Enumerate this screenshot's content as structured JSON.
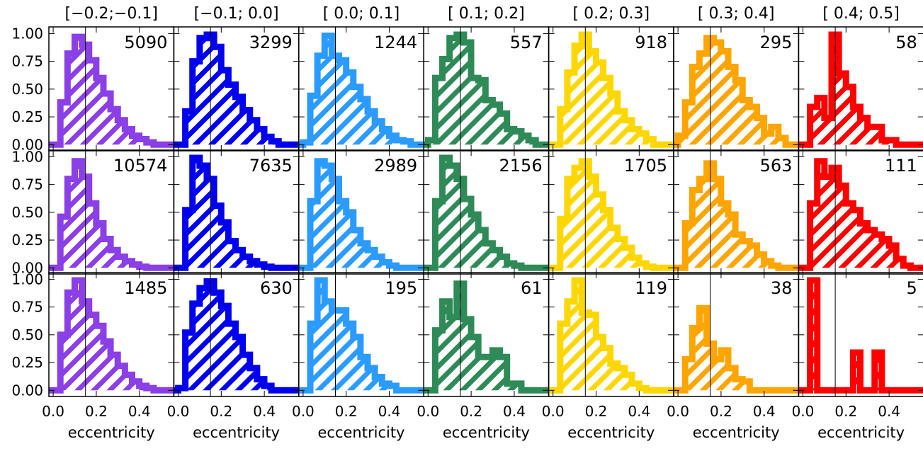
{
  "chart_data": {
    "type": "bar",
    "layout": "3 rows x 7 columns grid of step histograms (hatched fill)",
    "xlabel": "eccentricity",
    "ylabel": "",
    "xlim": [
      -0.02,
      0.56
    ],
    "ylim": [
      -0.03,
      1.06
    ],
    "x_ticks": [
      "0.0",
      "0.2",
      "0.4"
    ],
    "y_ticks": [
      "0.00",
      "0.25",
      "0.50",
      "0.75",
      "1.00"
    ],
    "reference_line_x": 0.15,
    "grid": false,
    "bin_width": 0.0333,
    "column_titles": [
      "[−0.2;−0.1]",
      "[−0.1; 0.0]",
      "[ 0.0; 0.1]",
      "[ 0.1; 0.2]",
      "[ 0.2; 0.3]",
      "[ 0.3; 0.4]",
      "[ 0.4; 0.5]"
    ],
    "column_colors": [
      "#8b3fe6",
      "#0000ee",
      "#2b9bff",
      "#2e8b57",
      "#ffd700",
      "#ffa500",
      "#ff0000"
    ],
    "panels": [
      {
        "row": 0,
        "col": 0,
        "count": "5090",
        "values": [
          0.0,
          0.38,
          0.82,
          0.97,
          0.9,
          0.76,
          0.6,
          0.46,
          0.32,
          0.22,
          0.14,
          0.08,
          0.05,
          0.02,
          0.0,
          0.0
        ]
      },
      {
        "row": 0,
        "col": 1,
        "count": "3299",
        "values": [
          0.0,
          0.3,
          0.75,
          0.96,
          0.99,
          0.88,
          0.67,
          0.54,
          0.43,
          0.31,
          0.22,
          0.14,
          0.07,
          0.03,
          0.0,
          0.0
        ]
      },
      {
        "row": 0,
        "col": 2,
        "count": "1244",
        "values": [
          0.02,
          0.44,
          0.8,
          0.98,
          0.8,
          0.76,
          0.65,
          0.52,
          0.41,
          0.3,
          0.21,
          0.14,
          0.08,
          0.04,
          0.03,
          0.0
        ]
      },
      {
        "row": 0,
        "col": 3,
        "count": "557",
        "values": [
          0.04,
          0.6,
          0.77,
          0.96,
          0.99,
          0.92,
          0.6,
          0.58,
          0.4,
          0.36,
          0.28,
          0.14,
          0.12,
          0.08,
          0.04,
          0.0
        ]
      },
      {
        "row": 0,
        "col": 4,
        "count": "918",
        "values": [
          0.0,
          0.32,
          0.65,
          0.89,
          0.99,
          0.84,
          0.74,
          0.6,
          0.46,
          0.3,
          0.22,
          0.14,
          0.1,
          0.05,
          0.0,
          0.0
        ]
      },
      {
        "row": 0,
        "col": 5,
        "count": "295",
        "values": [
          0.08,
          0.38,
          0.7,
          0.82,
          0.96,
          0.92,
          0.84,
          0.7,
          0.58,
          0.4,
          0.34,
          0.24,
          0.1,
          0.16,
          0.06,
          0.0
        ]
      },
      {
        "row": 0,
        "col": 6,
        "count": "58",
        "values": [
          0.0,
          0.34,
          0.42,
          0.24,
          0.99,
          0.64,
          0.52,
          0.34,
          0.24,
          0.16,
          0.16,
          0.04,
          0.04,
          0.0,
          0.0,
          0.0
        ]
      },
      {
        "row": 1,
        "col": 0,
        "count": "10574",
        "values": [
          0.0,
          0.46,
          0.8,
          0.96,
          0.82,
          0.58,
          0.4,
          0.26,
          0.16,
          0.1,
          0.06,
          0.03,
          0.01,
          0.0,
          0.0,
          0.0
        ]
      },
      {
        "row": 1,
        "col": 1,
        "count": "7635",
        "values": [
          0.0,
          0.52,
          0.99,
          0.92,
          0.8,
          0.56,
          0.41,
          0.24,
          0.16,
          0.1,
          0.06,
          0.03,
          0.01,
          0.0,
          0.0,
          0.0
        ]
      },
      {
        "row": 1,
        "col": 2,
        "count": "2989",
        "values": [
          0.0,
          0.6,
          0.96,
          0.92,
          0.8,
          0.6,
          0.5,
          0.34,
          0.22,
          0.16,
          0.1,
          0.05,
          0.02,
          0.0,
          0.0,
          0.0
        ]
      },
      {
        "row": 1,
        "col": 3,
        "count": "2156",
        "values": [
          0.0,
          0.6,
          0.99,
          0.92,
          0.8,
          0.62,
          0.48,
          0.34,
          0.22,
          0.16,
          0.1,
          0.04,
          0.02,
          0.0,
          0.0,
          0.0
        ]
      },
      {
        "row": 1,
        "col": 4,
        "count": "1705",
        "values": [
          0.0,
          0.44,
          0.8,
          0.9,
          0.96,
          0.82,
          0.66,
          0.52,
          0.36,
          0.26,
          0.18,
          0.09,
          0.04,
          0.01,
          0.0,
          0.0
        ]
      },
      {
        "row": 1,
        "col": 5,
        "count": "563",
        "values": [
          0.0,
          0.4,
          0.7,
          0.8,
          0.94,
          0.8,
          0.58,
          0.48,
          0.3,
          0.24,
          0.2,
          0.12,
          0.06,
          0.02,
          0.0,
          0.0
        ]
      },
      {
        "row": 1,
        "col": 6,
        "count": "111",
        "values": [
          0.0,
          0.58,
          0.96,
          0.82,
          0.9,
          0.74,
          0.58,
          0.52,
          0.4,
          0.34,
          0.3,
          0.26,
          0.2,
          0.08,
          0.02,
          0.0
        ]
      },
      {
        "row": 2,
        "col": 0,
        "count": "1485",
        "values": [
          0.0,
          0.5,
          0.88,
          0.99,
          0.8,
          0.68,
          0.58,
          0.44,
          0.32,
          0.22,
          0.14,
          0.08,
          0.04,
          0.02,
          0.0,
          0.0
        ]
      },
      {
        "row": 2,
        "col": 1,
        "count": "630",
        "values": [
          0.02,
          0.52,
          0.78,
          0.92,
          0.98,
          0.88,
          0.76,
          0.6,
          0.48,
          0.32,
          0.2,
          0.1,
          0.04,
          0.0,
          0.0,
          0.0
        ]
      },
      {
        "row": 2,
        "col": 2,
        "count": "195",
        "values": [
          0.0,
          0.6,
          0.99,
          0.8,
          0.72,
          0.72,
          0.6,
          0.48,
          0.3,
          0.2,
          0.12,
          0.06,
          0.04,
          0.0,
          0.0,
          0.0
        ]
      },
      {
        "row": 2,
        "col": 3,
        "count": "61",
        "values": [
          0.0,
          0.54,
          0.8,
          0.66,
          0.96,
          0.64,
          0.48,
          0.3,
          0.3,
          0.36,
          0.3,
          0.06,
          0.06,
          0.0,
          0.0,
          0.0
        ]
      },
      {
        "row": 2,
        "col": 4,
        "count": "119",
        "values": [
          0.0,
          0.6,
          0.8,
          0.99,
          0.7,
          0.68,
          0.48,
          0.38,
          0.24,
          0.2,
          0.14,
          0.06,
          0.02,
          0.0,
          0.0,
          0.0
        ]
      },
      {
        "row": 2,
        "col": 5,
        "count": "38",
        "values": [
          0.0,
          0.28,
          0.56,
          0.74,
          0.42,
          0.28,
          0.36,
          0.2,
          0.1,
          0.08,
          0.0,
          0.0,
          0.0,
          0.0,
          0.0,
          0.0
        ]
      },
      {
        "row": 2,
        "col": 6,
        "count": "5",
        "values": [
          0.0,
          0.99,
          0.0,
          0.0,
          0.0,
          0.0,
          0.0,
          0.34,
          0.0,
          0.0,
          0.34,
          0.0,
          0.0,
          0.0,
          0.0,
          0.0
        ]
      }
    ]
  }
}
